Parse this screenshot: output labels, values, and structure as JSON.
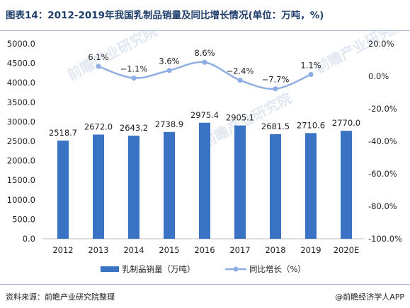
{
  "figure_title": "图表14：2012-2019年我国乳制品销量及同比增长情况(单位：万吨，%)",
  "source": "资料来源：前瞻产业研究院整理",
  "brand": "@前瞻经济学人APP",
  "watermark": "前瞻产业研究院",
  "colors": {
    "bar": "#3a72c4",
    "line": "#8faee3",
    "title": "#1f3e6b",
    "axis_text": "#222222"
  },
  "chart_data": {
    "type": "bar",
    "categories": [
      "2012",
      "2013",
      "2014",
      "2015",
      "2016",
      "2017",
      "2018",
      "2019",
      "2020E"
    ],
    "series": [
      {
        "name": "乳制品销量（万吨）",
        "type": "bar",
        "axis": "left",
        "values": [
          2518.7,
          2672.0,
          2643.2,
          2738.9,
          2975.4,
          2905.1,
          2681.5,
          2710.6,
          2770.0
        ],
        "labels": [
          "2518.7",
          "2672.0",
          "2643.2",
          "2738.9",
          "2975.4",
          "2905.1",
          "2681.5",
          "2710.6",
          "2770.0"
        ]
      },
      {
        "name": "同比增长（%）",
        "type": "line",
        "axis": "right",
        "values": [
          null,
          6.1,
          -1.1,
          3.6,
          8.6,
          -2.4,
          -7.7,
          1.1,
          null
        ],
        "labels": [
          "",
          "6.1%",
          "−1.1%",
          "3.6%",
          "8.6%",
          "−2.4%",
          "−7.7%",
          "1.1%",
          ""
        ]
      }
    ],
    "y_left": {
      "range": [
        0,
        5000
      ],
      "ticks": [
        "0.0",
        "500.0",
        "1000.0",
        "1500.0",
        "2000.0",
        "2500.0",
        "3000.0",
        "3500.0",
        "4000.0",
        "4500.0",
        "5000.0"
      ]
    },
    "y_right": {
      "range": [
        -100,
        20
      ],
      "ticks": [
        "-100.0%",
        "-80.0%",
        "-60.0%",
        "-40.0%",
        "-20.0%",
        "0.0%",
        "20.0%"
      ]
    },
    "grid": false,
    "legend_position": "bottom"
  }
}
